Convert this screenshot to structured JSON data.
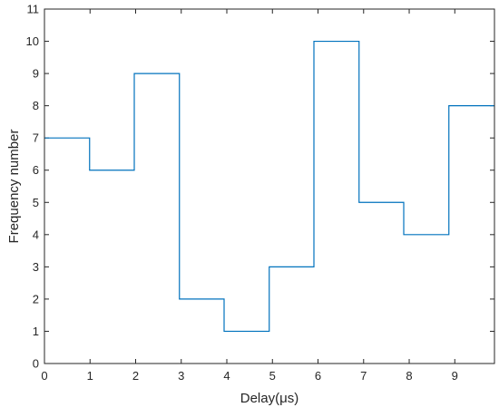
{
  "chart_data": {
    "type": "line",
    "style": "stairs",
    "title": "",
    "xlabel": "Delay(μs)",
    "ylabel": "Frequency number",
    "xlim": [
      0,
      9.87
    ],
    "ylim": [
      0,
      11
    ],
    "x_ticks": [
      0,
      1,
      2,
      3,
      4,
      5,
      6,
      7,
      8,
      9
    ],
    "y_ticks": [
      0,
      1,
      2,
      3,
      4,
      5,
      6,
      7,
      8,
      9,
      10,
      11
    ],
    "grid": false,
    "legend": "none",
    "line_color": "#0072BD",
    "series": [
      {
        "x": [
          0,
          0.99,
          1.97,
          2.96,
          3.94,
          4.93,
          5.91,
          6.9,
          7.88,
          8.87
        ],
        "values": [
          7,
          6,
          9,
          2,
          1,
          3,
          10,
          5,
          4,
          8
        ]
      }
    ]
  }
}
